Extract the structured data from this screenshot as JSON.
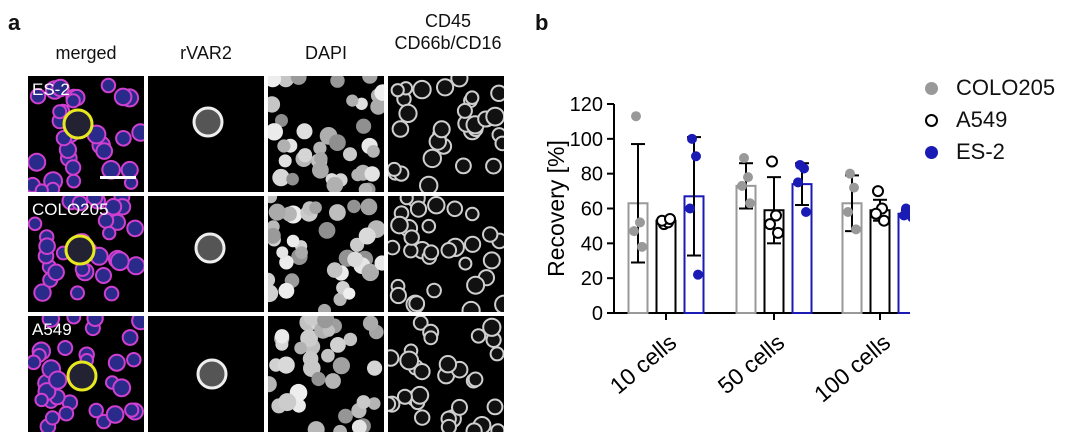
{
  "panels": {
    "a": "a",
    "b": "b"
  },
  "micrograph": {
    "columns": [
      "merged",
      "rVAR2",
      "DAPI",
      "CD45\nCD66b/CD16"
    ],
    "rows": [
      "ES-2",
      "COLO205",
      "A549"
    ]
  },
  "chart_data": {
    "type": "bar",
    "ylabel": "Recovery  [%]",
    "xlabel": "",
    "ylim": [
      0,
      120
    ],
    "yticks": [
      0,
      20,
      40,
      60,
      80,
      100,
      120
    ],
    "categories": [
      "10 cells",
      "50 cells",
      "100 cells"
    ],
    "legend_position": "top-right",
    "series": [
      {
        "name": "COLO205",
        "color": "#999999",
        "marker": "filled",
        "means": [
          63,
          73,
          63
        ],
        "errors": [
          34,
          13,
          16
        ],
        "points": [
          [
            113,
            52,
            47,
            38
          ],
          [
            89,
            78,
            73,
            63
          ],
          [
            80,
            72,
            58,
            48
          ]
        ]
      },
      {
        "name": "A549",
        "color": "#000000",
        "marker": "open",
        "means": [
          53,
          59,
          59
        ],
        "errors": [
          2,
          19,
          6
        ],
        "points": [
          [
            51,
            52,
            53,
            54
          ],
          [
            87,
            56,
            51,
            46
          ],
          [
            70,
            60,
            57,
            53
          ]
        ]
      },
      {
        "name": "ES-2",
        "color": "#1a1ab4",
        "marker": "filled",
        "means": [
          67,
          74,
          57
        ],
        "errors": [
          34,
          12,
          2
        ],
        "points": [
          [
            100,
            90,
            60,
            22
          ],
          [
            85,
            83,
            75,
            58
          ],
          [
            60,
            58,
            56,
            55
          ]
        ]
      }
    ]
  }
}
